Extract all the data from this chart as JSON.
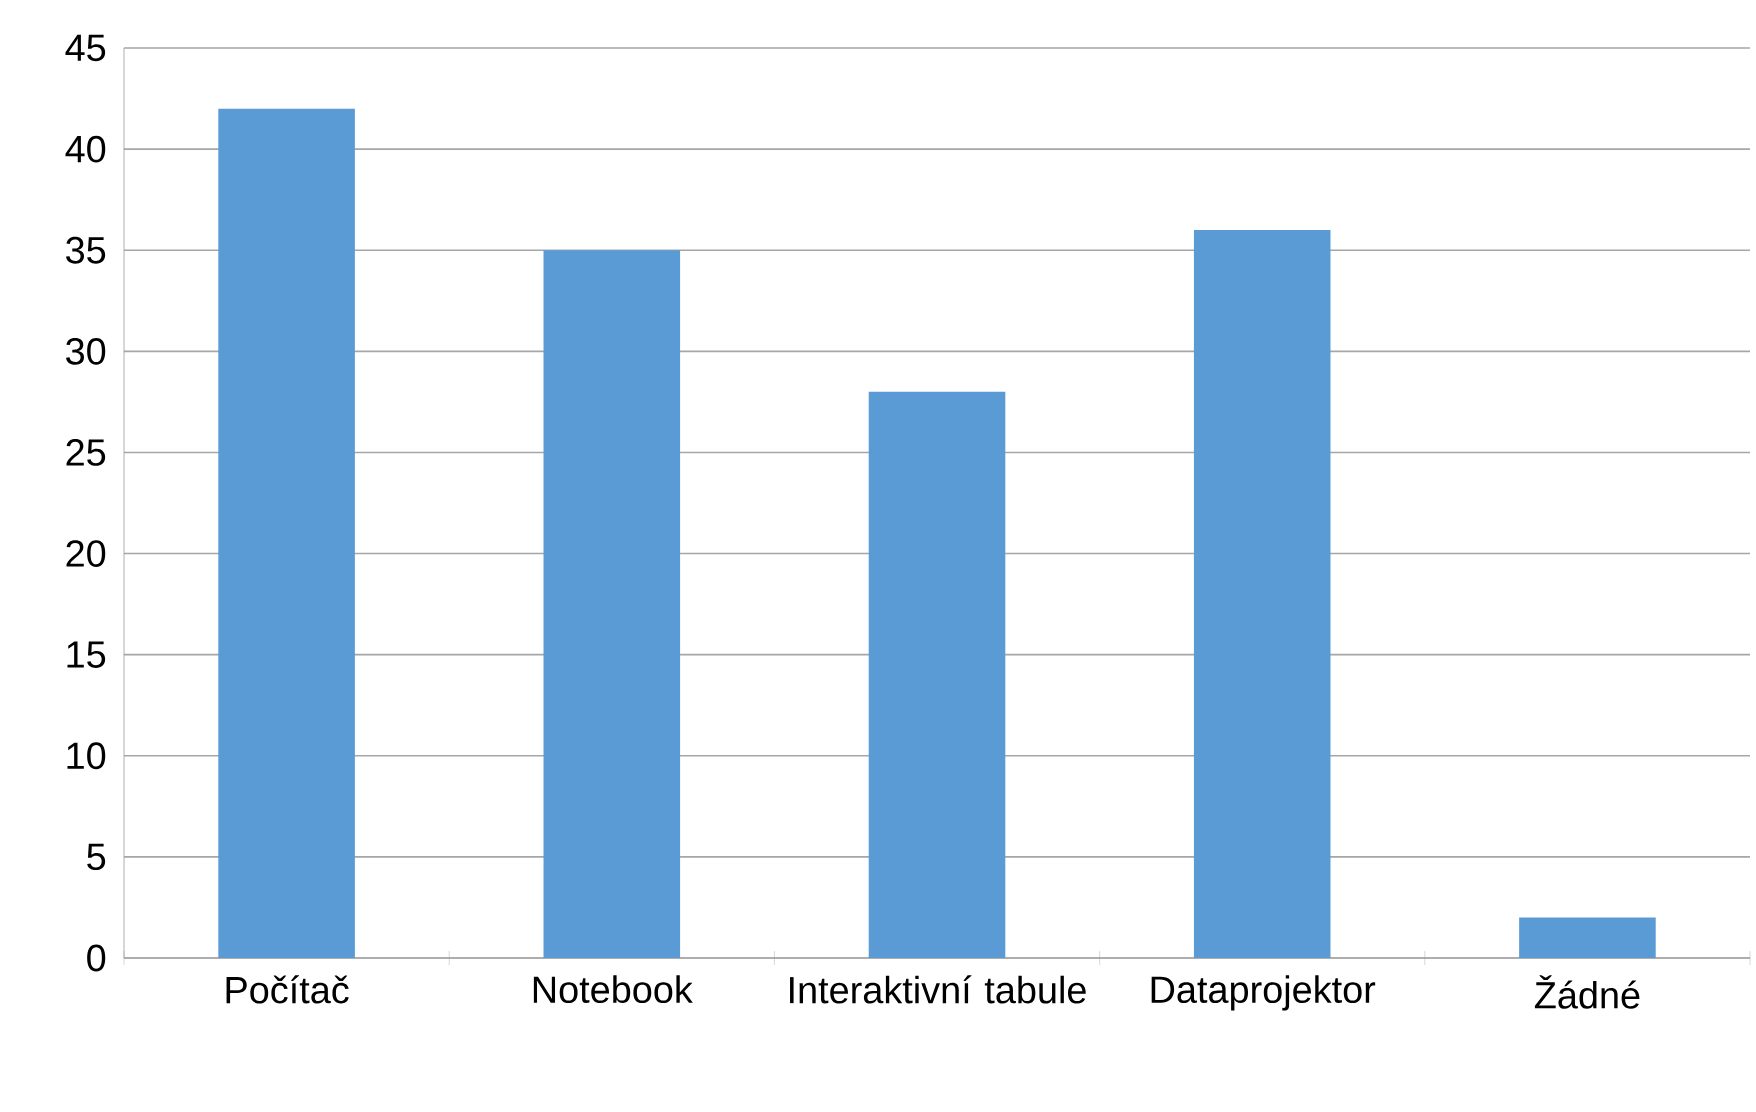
{
  "chart_data": {
    "type": "bar",
    "categories": [
      "Počítač",
      "Notebook",
      "Interaktivní tabule",
      "Dataprojektor",
      "Žádné"
    ],
    "values": [
      42,
      35,
      28,
      36,
      2
    ],
    "color": "#5b9bd5",
    "ylim": [
      0,
      45
    ],
    "yticks": [
      0,
      5,
      10,
      15,
      20,
      25,
      30,
      35,
      40,
      45
    ],
    "grid": "y"
  }
}
